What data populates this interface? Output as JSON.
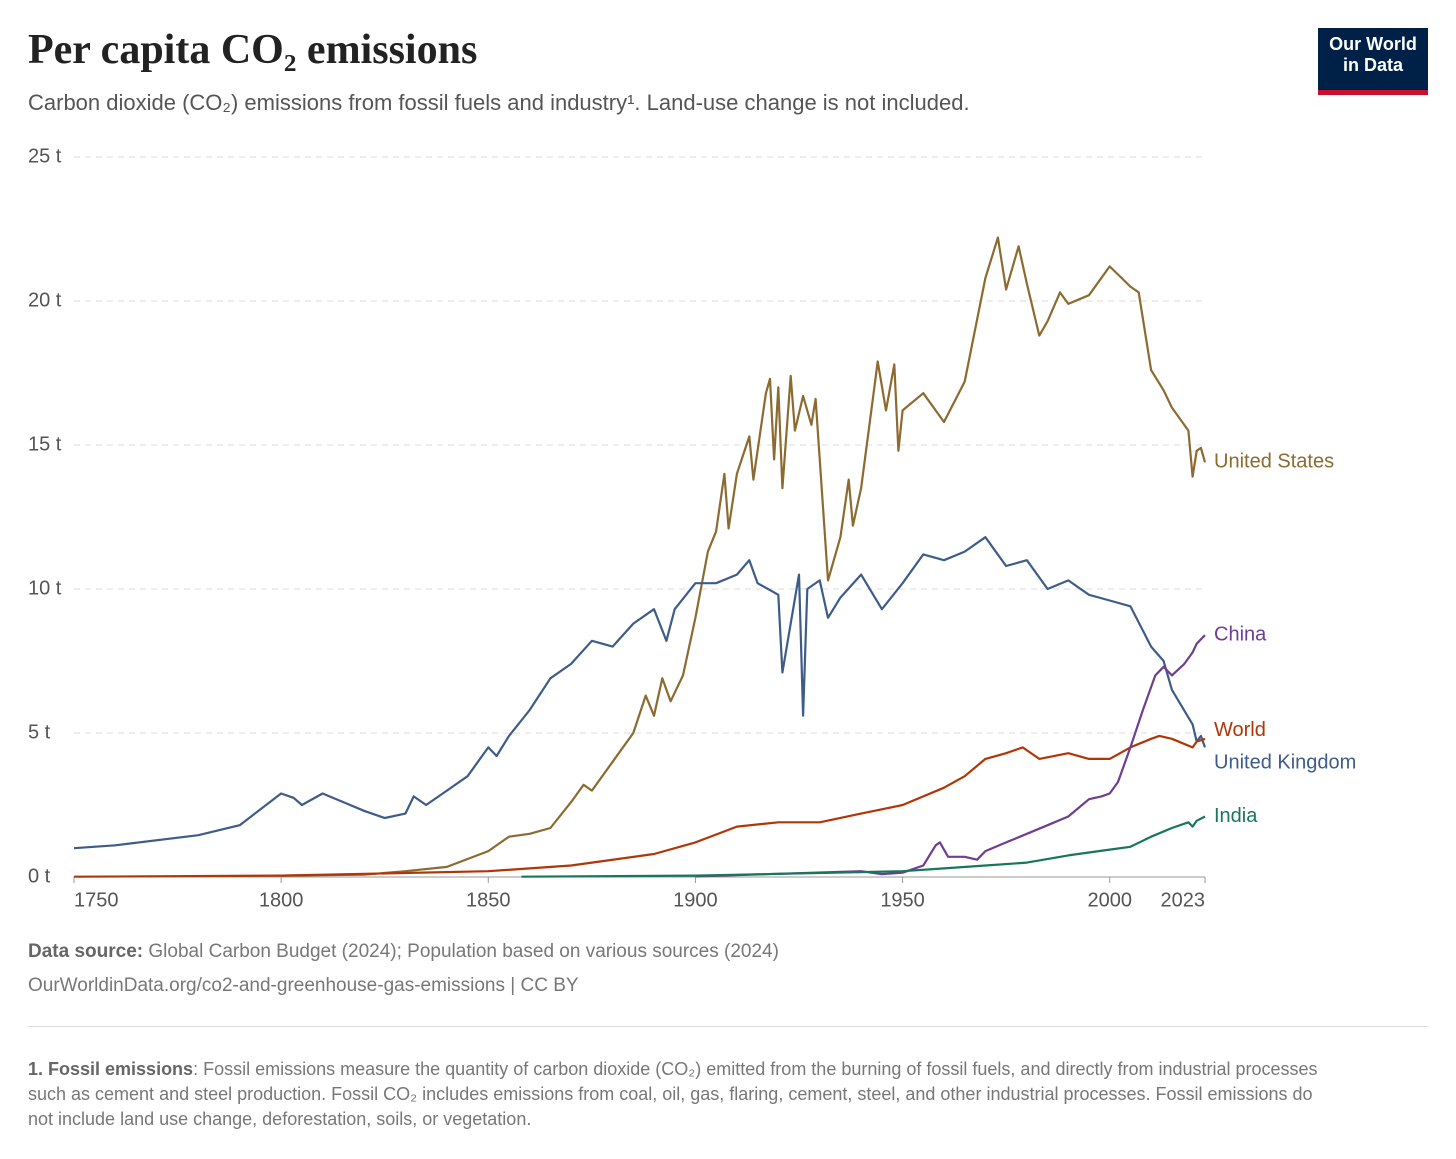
{
  "chart_data": {
    "type": "line",
    "title": "Per capita CO₂ emissions",
    "subtitle": "Carbon dioxide (CO₂) emissions from fossil fuels and industry¹. Land-use change is not included.",
    "logo": [
      "Our World",
      "in Data"
    ],
    "source_label": "Data source:",
    "source": "Global Carbon Budget (2024); Population based on various sources (2024)",
    "url": "OurWorldinData.org/co2-and-greenhouse-gas-emissions | CC BY",
    "footnote_label": "1. Fossil emissions",
    "footnote": ": Fossil emissions measure the quantity of carbon dioxide (CO₂) emitted from the burning of fossil fuels, and directly from industrial processes such as cement and steel production. Fossil CO₂ includes emissions from coal, oil, gas, flaring, cement, steel, and other industrial processes. Fossil emissions do not include land use change, deforestation, soils, or vegetation.",
    "xlim": [
      1750,
      2023
    ],
    "xticks": [
      1750,
      1800,
      1850,
      1900,
      1950,
      2000,
      2023
    ],
    "ylim": [
      0,
      25
    ],
    "yticks": [
      {
        "value": 0,
        "label": "0 t"
      },
      {
        "value": 5,
        "label": "5 t"
      },
      {
        "value": 10,
        "label": "10 t"
      },
      {
        "value": 15,
        "label": "15 t"
      },
      {
        "value": 20,
        "label": "20 t"
      },
      {
        "value": 25,
        "label": "25 t"
      }
    ],
    "grid": true,
    "series": [
      {
        "name": "United States",
        "color": "#8c6a30",
        "x": [
          1800,
          1820,
          1830,
          1840,
          1850,
          1855,
          1860,
          1865,
          1870,
          1873,
          1875,
          1880,
          1885,
          1888,
          1890,
          1892,
          1894,
          1897,
          1900,
          1903,
          1905,
          1907,
          1908,
          1910,
          1913,
          1914,
          1917,
          1918,
          1919,
          1920,
          1921,
          1923,
          1924,
          1926,
          1928,
          1929,
          1932,
          1935,
          1937,
          1938,
          1940,
          1943,
          1944,
          1946,
          1948,
          1949,
          1950,
          1955,
          1960,
          1965,
          1970,
          1973,
          1975,
          1978,
          1980,
          1983,
          1985,
          1988,
          1990,
          1995,
          2000,
          2005,
          2007,
          2010,
          2013,
          2015,
          2019,
          2020,
          2021,
          2022,
          2023
        ],
        "values": [
          0.05,
          0.08,
          0.2,
          0.35,
          0.9,
          1.4,
          1.5,
          1.7,
          2.6,
          3.2,
          3.0,
          4.0,
          5.0,
          6.3,
          5.6,
          6.9,
          6.1,
          7.0,
          9.0,
          11.3,
          12.0,
          14.0,
          12.1,
          14.0,
          15.3,
          13.8,
          16.8,
          17.3,
          14.5,
          17.0,
          13.5,
          17.4,
          15.5,
          16.7,
          15.7,
          16.6,
          10.3,
          11.8,
          13.8,
          12.2,
          13.5,
          16.8,
          17.9,
          16.2,
          17.8,
          14.8,
          16.2,
          16.8,
          15.8,
          17.2,
          20.8,
          22.2,
          20.4,
          21.9,
          20.6,
          18.8,
          19.3,
          20.3,
          19.9,
          20.2,
          21.2,
          20.5,
          20.3,
          17.6,
          16.9,
          16.3,
          15.5,
          13.9,
          14.8,
          14.9,
          14.4
        ]
      },
      {
        "name": "United Kingdom",
        "color": "#3e5c8a",
        "x": [
          1750,
          1760,
          1780,
          1790,
          1800,
          1803,
          1805,
          1810,
          1815,
          1820,
          1825,
          1830,
          1832,
          1835,
          1840,
          1845,
          1850,
          1852,
          1855,
          1860,
          1865,
          1870,
          1875,
          1880,
          1885,
          1890,
          1893,
          1895,
          1900,
          1905,
          1910,
          1913,
          1915,
          1920,
          1921,
          1925,
          1926,
          1927,
          1930,
          1932,
          1935,
          1940,
          1945,
          1950,
          1955,
          1960,
          1965,
          1970,
          1975,
          1980,
          1985,
          1990,
          1995,
          2000,
          2005,
          2010,
          2013,
          2015,
          2020,
          2021,
          2022,
          2023
        ],
        "values": [
          1.0,
          1.1,
          1.45,
          1.8,
          2.9,
          2.75,
          2.5,
          2.9,
          2.6,
          2.3,
          2.05,
          2.2,
          2.8,
          2.5,
          3.0,
          3.5,
          4.5,
          4.2,
          4.9,
          5.8,
          6.9,
          7.4,
          8.2,
          8.0,
          8.8,
          9.3,
          8.2,
          9.3,
          10.2,
          10.2,
          10.5,
          11.0,
          10.2,
          9.8,
          7.1,
          10.5,
          5.6,
          10.0,
          10.3,
          9.0,
          9.7,
          10.5,
          9.3,
          10.2,
          11.2,
          11.0,
          11.3,
          11.8,
          10.8,
          11.0,
          10.0,
          10.3,
          9.8,
          9.6,
          9.4,
          8.0,
          7.5,
          6.5,
          5.3,
          4.7,
          4.9,
          4.5
        ]
      },
      {
        "name": "World",
        "color": "#b13507",
        "x": [
          1750,
          1800,
          1850,
          1870,
          1890,
          1900,
          1910,
          1920,
          1930,
          1940,
          1950,
          1955,
          1960,
          1965,
          1970,
          1975,
          1979,
          1983,
          1990,
          1995,
          2000,
          2005,
          2010,
          2012,
          2015,
          2020,
          2021,
          2023
        ],
        "values": [
          0.01,
          0.05,
          0.2,
          0.4,
          0.8,
          1.2,
          1.75,
          1.9,
          1.9,
          2.2,
          2.5,
          2.8,
          3.1,
          3.5,
          4.1,
          4.3,
          4.5,
          4.1,
          4.3,
          4.1,
          4.1,
          4.5,
          4.8,
          4.9,
          4.8,
          4.5,
          4.7,
          4.8
        ]
      },
      {
        "name": "China",
        "color": "#6d3e91",
        "x": [
          1900,
          1940,
          1945,
          1950,
          1955,
          1958,
          1959,
          1961,
          1965,
          1968,
          1970,
          1975,
          1980,
          1985,
          1990,
          1995,
          1998,
          2000,
          2002,
          2005,
          2008,
          2011,
          2013,
          2015,
          2018,
          2020,
          2021,
          2023
        ],
        "values": [
          0.02,
          0.2,
          0.1,
          0.15,
          0.4,
          1.1,
          1.2,
          0.7,
          0.7,
          0.6,
          0.9,
          1.2,
          1.5,
          1.8,
          2.1,
          2.7,
          2.8,
          2.9,
          3.3,
          4.5,
          5.8,
          7.0,
          7.3,
          7.0,
          7.4,
          7.8,
          8.1,
          8.4
        ]
      },
      {
        "name": "India",
        "color": "#18775b",
        "x": [
          1858,
          1900,
          1950,
          1960,
          1970,
          1980,
          1990,
          2000,
          2005,
          2010,
          2015,
          2019,
          2020,
          2021,
          2023
        ],
        "values": [
          0.01,
          0.05,
          0.2,
          0.3,
          0.4,
          0.5,
          0.75,
          0.95,
          1.05,
          1.4,
          1.7,
          1.9,
          1.75,
          1.95,
          2.1
        ]
      }
    ]
  }
}
